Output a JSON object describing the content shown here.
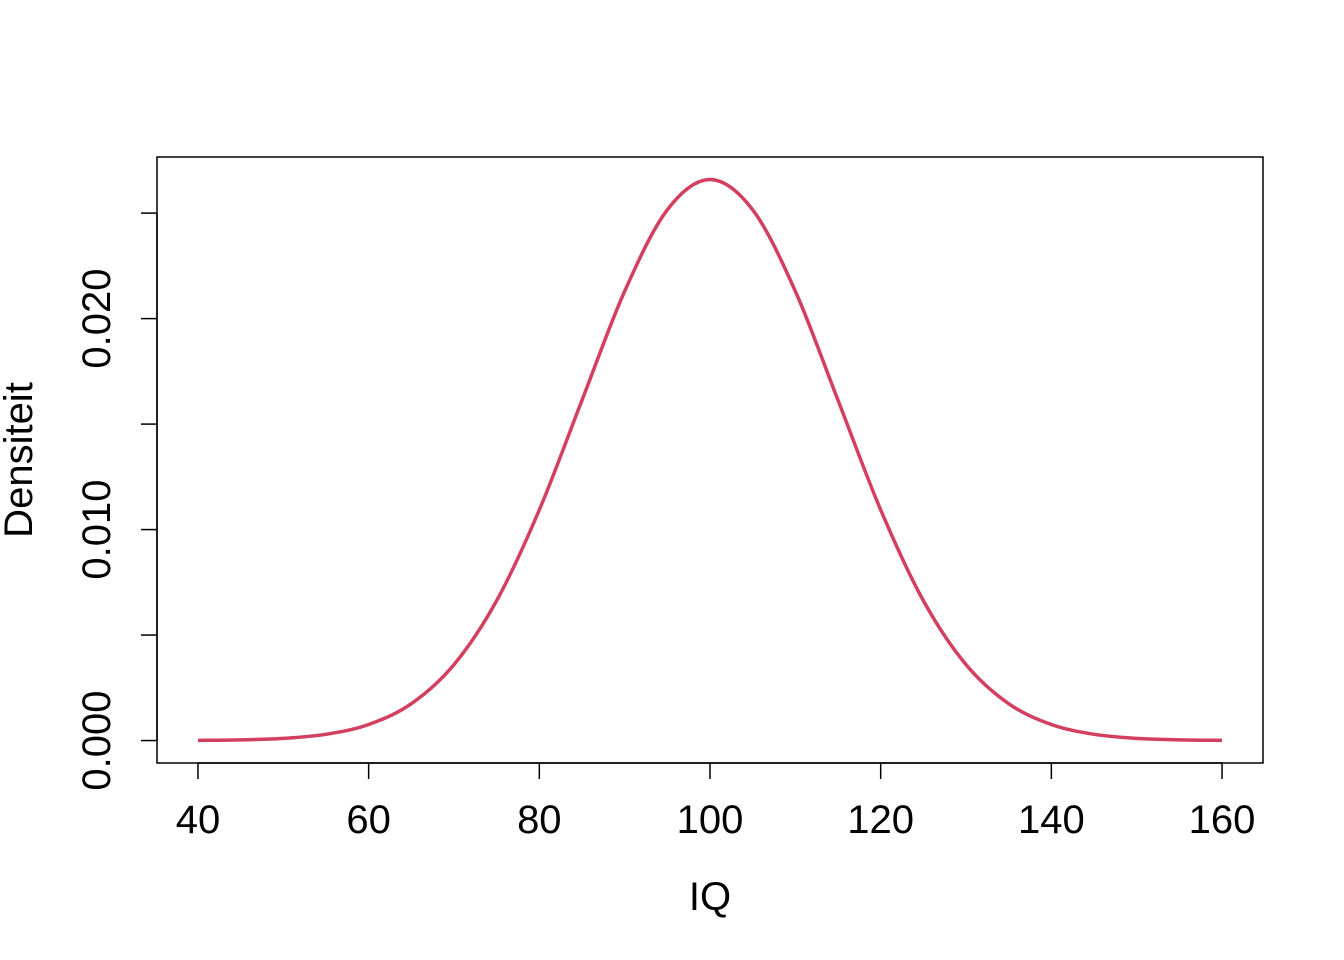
{
  "chart_data": {
    "type": "line",
    "xlabel": "IQ",
    "ylabel": "Densiteit",
    "x": [
      40,
      45,
      50,
      55,
      60,
      65,
      70,
      75,
      80,
      85,
      90,
      95,
      100,
      105,
      110,
      115,
      120,
      125,
      130,
      135,
      140,
      145,
      150,
      155,
      160
    ],
    "series": [
      {
        "color": "#d33f5f",
        "values": [
          8.9e-06,
          3.2e-05,
          0.000103,
          0.000295,
          0.00076,
          0.001748,
          0.003599,
          0.006632,
          0.010934,
          0.016131,
          0.021297,
          0.025159,
          0.026596,
          0.025159,
          0.021297,
          0.016131,
          0.010934,
          0.006632,
          0.003599,
          0.001748,
          0.00076,
          0.000295,
          0.000103,
          3.2e-05,
          8.9e-06
        ]
      }
    ],
    "xlim": [
      35.2,
      164.8
    ],
    "ylim": [
      -0.001064,
      0.02766
    ],
    "xticks": [
      40,
      60,
      80,
      100,
      120,
      140,
      160
    ],
    "yticks": [
      {
        "value": 0,
        "label": "0.000"
      },
      {
        "value": 0.01,
        "label": "0.010"
      },
      {
        "value": 0.02,
        "label": "0.020"
      }
    ],
    "y_minor_ticks": [
      0.005,
      0.015,
      0.025
    ]
  }
}
